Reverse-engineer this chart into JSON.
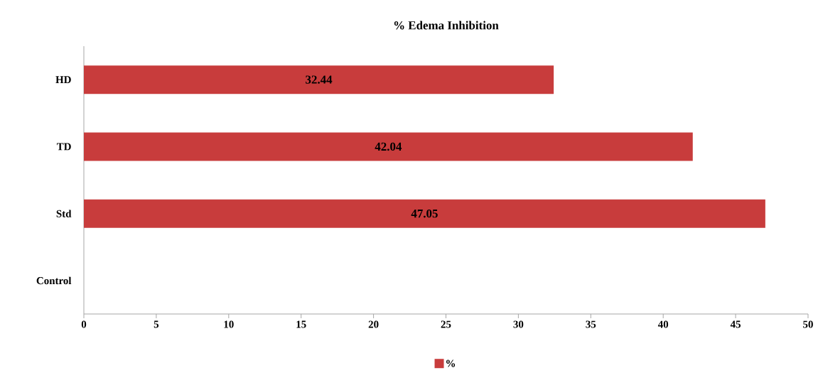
{
  "chart_data": {
    "type": "bar",
    "orientation": "horizontal",
    "title": "% Edema Inhibition",
    "categories": [
      "HD",
      "TD",
      "Std",
      "Control"
    ],
    "series": [
      {
        "name": "%",
        "color": "#c83c3c",
        "values": [
          32.44,
          42.04,
          47.05,
          0
        ],
        "value_labels": [
          "32.44",
          "42.04",
          "47.05",
          null
        ]
      }
    ],
    "xlim": [
      0,
      50
    ],
    "xticks": [
      0,
      5,
      10,
      15,
      20,
      25,
      30,
      35,
      40,
      45,
      50
    ],
    "grid": false,
    "legend": "bottom"
  }
}
